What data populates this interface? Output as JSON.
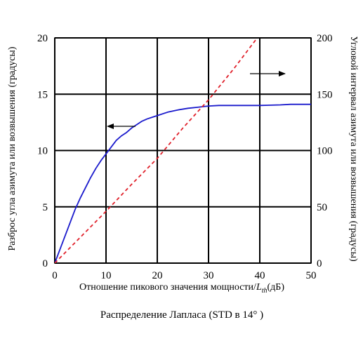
{
  "chart_data": {
    "type": "line",
    "xlabel": "Отношение пикового значения мощности/",
    "xlabel_math_base": "L",
    "xlabel_math_sub": "th",
    "xlabel_unit": "(дБ)",
    "ylabel_left": "Разброс угла азимута или возвышения (градусы)",
    "ylabel_right": "Угловой интервал азимута или возвышения (градусы)",
    "caption": "Распределение Лапласа (STD в 14° )",
    "xlim": [
      0,
      50
    ],
    "ylim_left": [
      0,
      20
    ],
    "ylim_right": [
      0,
      200
    ],
    "x_ticks": [
      "0",
      "10",
      "20",
      "30",
      "40",
      "50"
    ],
    "y_left_ticks": [
      "0",
      "5",
      "10",
      "15",
      "20"
    ],
    "y_right_ticks": [
      "0",
      "50",
      "100",
      "150",
      "200"
    ],
    "grid": true,
    "series": [
      {
        "axis": "left",
        "style": "solid",
        "color": "#1a1acc",
        "x": [
          0,
          1,
          2,
          3,
          4,
          5,
          6,
          7,
          8,
          9,
          10,
          11,
          12,
          13,
          14,
          15,
          16,
          17,
          18,
          19,
          20,
          22,
          24,
          26,
          28,
          30,
          32,
          35,
          40,
          44,
          46,
          50
        ],
        "y": [
          0,
          1.2,
          2.4,
          3.6,
          4.8,
          5.8,
          6.7,
          7.6,
          8.4,
          9.1,
          9.7,
          10.3,
          10.9,
          11.3,
          11.6,
          12.0,
          12.3,
          12.6,
          12.8,
          12.95,
          13.1,
          13.4,
          13.6,
          13.75,
          13.85,
          13.95,
          14.0,
          14.0,
          14.0,
          14.05,
          14.1,
          14.1
        ]
      },
      {
        "axis": "right",
        "style": "dashed",
        "color": "#e0202a",
        "x": [
          0,
          5,
          10,
          15,
          20,
          25,
          30,
          35,
          39.5
        ],
        "y": [
          0,
          23,
          46,
          70,
          93,
          120,
          145,
          173,
          200
        ]
      }
    ],
    "annotations": [
      {
        "type": "arrow",
        "direction": "left",
        "points_to": "left axis"
      },
      {
        "type": "arrow",
        "direction": "right",
        "points_to": "right axis"
      }
    ]
  }
}
